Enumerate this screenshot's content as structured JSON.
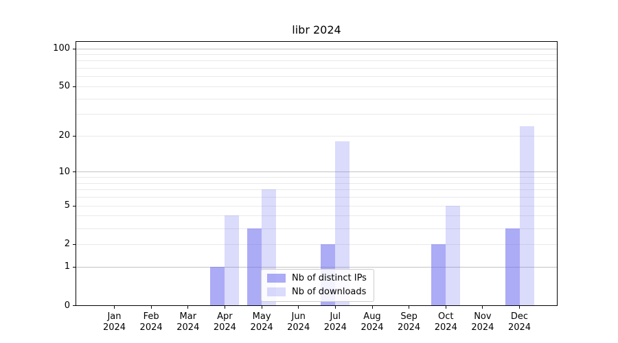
{
  "chart_data": {
    "type": "bar",
    "title": "libr 2024",
    "categories": [
      "Jan",
      "Feb",
      "Mar",
      "Apr",
      "May",
      "Jun",
      "Jul",
      "Aug",
      "Sep",
      "Oct",
      "Nov",
      "Dec"
    ],
    "category_year": "2024",
    "series": [
      {
        "name": "Nb of distinct IPs",
        "color": "rgba(102,102,238,0.55)",
        "values": [
          0,
          0,
          0,
          1,
          3,
          0,
          2,
          0,
          0,
          2,
          0,
          3
        ]
      },
      {
        "name": "Nb of downloads",
        "color": "rgba(102,102,238,0.235)",
        "values": [
          0,
          0,
          0,
          4,
          7,
          0,
          18,
          0,
          0,
          5,
          0,
          24
        ]
      }
    ],
    "yscale": "log1p",
    "ylim": [
      0,
      101
    ],
    "y_tick_labels": [
      0,
      1,
      2,
      5,
      10,
      20,
      50,
      100
    ],
    "major_grid_values": [
      1,
      10,
      100
    ],
    "minor_grid_values": [
      2,
      3,
      4,
      5,
      6,
      7,
      8,
      9,
      20,
      30,
      40,
      50,
      60,
      70,
      80,
      90
    ],
    "legend_position": "lower center",
    "grid": true,
    "colors": {
      "bar_base": "#6666ee",
      "major_grid": "#c3c3c3",
      "minor_grid": "#e9e9e9",
      "spine": "#000000",
      "text": "#000000"
    }
  }
}
